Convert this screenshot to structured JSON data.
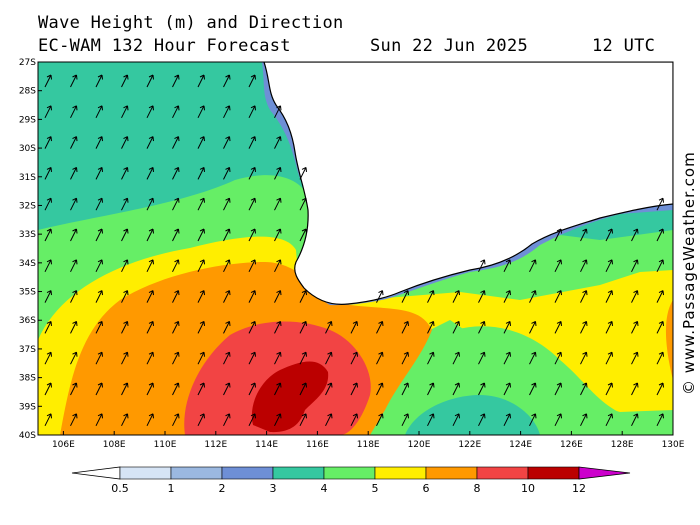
{
  "header": {
    "line1": "Wave Height (m) and Direction",
    "line2_left": "EC-WAM 132 Hour Forecast",
    "line2_date": "Sun 22 Jun 2025",
    "line2_time": "12 UTC"
  },
  "watermark": "© www.PassageWeather.com",
  "map": {
    "region": "Southern Australia — Great Australian Bight",
    "lon_labels": [
      "106E",
      "108E",
      "110E",
      "112E",
      "114E",
      "116E",
      "118E",
      "120E",
      "122E",
      "124E",
      "126E",
      "128E",
      "130E"
    ],
    "lat_labels": [
      "27S",
      "28S",
      "29S",
      "30S",
      "31S",
      "32S",
      "33S",
      "34S",
      "35S",
      "36S",
      "37S",
      "38S",
      "39S",
      "40S"
    ],
    "wave_direction": "north-east",
    "colors": {
      "land": "#ffffff",
      "band_0": "#d6e4f5",
      "band_1": "#9bb8e0",
      "band_2": "#6e8fd6",
      "band_3": "#35c8a0",
      "band_4": "#66ee66",
      "band_5": "#ffee00",
      "band_6": "#ff9900",
      "band_8": "#f24444",
      "band_10": "#bb0000",
      "band_12": "#cc00cc"
    }
  },
  "legend": {
    "labels": [
      "0.5",
      "1",
      "2",
      "3",
      "4",
      "5",
      "6",
      "8",
      "10",
      "12"
    ]
  }
}
